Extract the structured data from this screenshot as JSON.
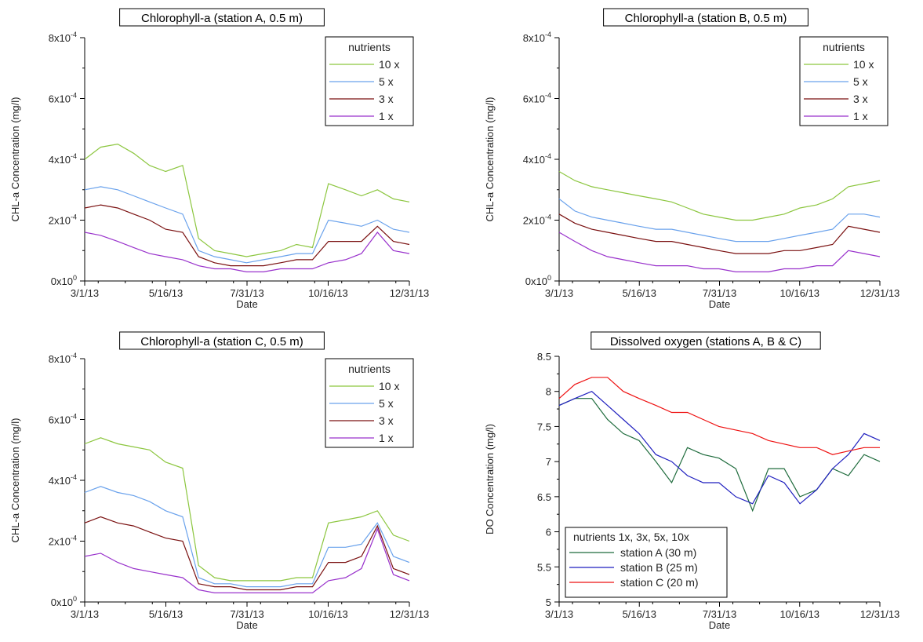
{
  "chart_data": [
    {
      "type": "line",
      "title": "Chlorophyll-a (station A, 0.5 m)",
      "xlabel": "Date",
      "ylabel": "CHL-a Concentration (mg/l)",
      "x_ticks": [
        "3/1/13",
        "5/16/13",
        "7/31/13",
        "10/16/13",
        "12/31/13"
      ],
      "y_ticks": [
        {
          "mant": "0x10",
          "exp": "0"
        },
        {
          "mant": "2x10",
          "exp": "-4"
        },
        {
          "mant": "4x10",
          "exp": "-4"
        },
        {
          "mant": "6x10",
          "exp": "-4"
        },
        {
          "mant": "8x10",
          "exp": "-4"
        }
      ],
      "xlim": [
        "2013-03-01",
        "2013-12-31"
      ],
      "ylim": [
        0,
        0.0008
      ],
      "legend_title": "nutrients",
      "legend_position": "top-right",
      "series": [
        {
          "name": "10 x",
          "color": "#8cc63f",
          "x": [
            "2013-03-01",
            "2013-03-16",
            "2013-04-01",
            "2013-04-16",
            "2013-05-01",
            "2013-05-16",
            "2013-06-01",
            "2013-06-16",
            "2013-07-01",
            "2013-07-16",
            "2013-07-31",
            "2013-08-16",
            "2013-09-01",
            "2013-09-16",
            "2013-10-01",
            "2013-10-16",
            "2013-11-01",
            "2013-11-16",
            "2013-12-01",
            "2013-12-16",
            "2013-12-31"
          ],
          "y": [
            0.0004,
            0.00044,
            0.00045,
            0.00042,
            0.00038,
            0.00036,
            0.00038,
            0.00014,
            0.0001,
            9e-05,
            8e-05,
            9e-05,
            0.0001,
            0.00012,
            0.00011,
            0.00032,
            0.0003,
            0.00028,
            0.0003,
            0.00027,
            0.00026
          ]
        },
        {
          "name": "5 x",
          "color": "#6aa2ec",
          "x": [
            "2013-03-01",
            "2013-03-16",
            "2013-04-01",
            "2013-04-16",
            "2013-05-01",
            "2013-05-16",
            "2013-06-01",
            "2013-06-16",
            "2013-07-01",
            "2013-07-16",
            "2013-07-31",
            "2013-08-16",
            "2013-09-01",
            "2013-09-16",
            "2013-10-01",
            "2013-10-16",
            "2013-11-01",
            "2013-11-16",
            "2013-12-01",
            "2013-12-16",
            "2013-12-31"
          ],
          "y": [
            0.0003,
            0.00031,
            0.0003,
            0.00028,
            0.00026,
            0.00024,
            0.00022,
            0.0001,
            8e-05,
            7e-05,
            6e-05,
            7e-05,
            8e-05,
            9e-05,
            9e-05,
            0.0002,
            0.00019,
            0.00018,
            0.0002,
            0.00017,
            0.00016
          ]
        },
        {
          "name": "3 x",
          "color": "#7a1010",
          "x": [
            "2013-03-01",
            "2013-03-16",
            "2013-04-01",
            "2013-04-16",
            "2013-05-01",
            "2013-05-16",
            "2013-06-01",
            "2013-06-16",
            "2013-07-01",
            "2013-07-16",
            "2013-07-31",
            "2013-08-16",
            "2013-09-01",
            "2013-09-16",
            "2013-10-01",
            "2013-10-16",
            "2013-11-01",
            "2013-11-16",
            "2013-12-01",
            "2013-12-16",
            "2013-12-31"
          ],
          "y": [
            0.00024,
            0.00025,
            0.00024,
            0.00022,
            0.0002,
            0.00017,
            0.00016,
            8e-05,
            6e-05,
            5e-05,
            5e-05,
            5e-05,
            6e-05,
            7e-05,
            7e-05,
            0.00013,
            0.00013,
            0.00013,
            0.00018,
            0.00013,
            0.00012
          ]
        },
        {
          "name": "1 x",
          "color": "#9932cc",
          "x": [
            "2013-03-01",
            "2013-03-16",
            "2013-04-01",
            "2013-04-16",
            "2013-05-01",
            "2013-05-16",
            "2013-06-01",
            "2013-06-16",
            "2013-07-01",
            "2013-07-16",
            "2013-07-31",
            "2013-08-16",
            "2013-09-01",
            "2013-09-16",
            "2013-10-01",
            "2013-10-16",
            "2013-11-01",
            "2013-11-16",
            "2013-12-01",
            "2013-12-16",
            "2013-12-31"
          ],
          "y": [
            0.00016,
            0.00015,
            0.00013,
            0.00011,
            9e-05,
            8e-05,
            7e-05,
            5e-05,
            4e-05,
            4e-05,
            3e-05,
            3e-05,
            4e-05,
            4e-05,
            4e-05,
            6e-05,
            7e-05,
            9e-05,
            0.00016,
            0.0001,
            9e-05
          ]
        }
      ]
    },
    {
      "type": "line",
      "title": "Chlorophyll-a (station B, 0.5 m)",
      "xlabel": "Date",
      "ylabel": "CHL-a Concentration (mg/l)",
      "x_ticks": [
        "3/1/13",
        "5/16/13",
        "7/31/13",
        "10/16/13",
        "12/31/13"
      ],
      "y_ticks": [
        {
          "mant": "0x10",
          "exp": "0"
        },
        {
          "mant": "2x10",
          "exp": "-4"
        },
        {
          "mant": "4x10",
          "exp": "-4"
        },
        {
          "mant": "6x10",
          "exp": "-4"
        },
        {
          "mant": "8x10",
          "exp": "-4"
        }
      ],
      "xlim": [
        "2013-03-01",
        "2013-12-31"
      ],
      "ylim": [
        0,
        0.0008
      ],
      "legend_title": "nutrients",
      "legend_position": "top-right",
      "series": [
        {
          "name": "10 x",
          "color": "#8cc63f",
          "x": [
            "2013-03-01",
            "2013-03-16",
            "2013-04-01",
            "2013-04-16",
            "2013-05-01",
            "2013-05-16",
            "2013-06-01",
            "2013-06-16",
            "2013-07-01",
            "2013-07-16",
            "2013-07-31",
            "2013-08-16",
            "2013-09-01",
            "2013-09-16",
            "2013-10-01",
            "2013-10-16",
            "2013-11-01",
            "2013-11-16",
            "2013-12-01",
            "2013-12-16",
            "2013-12-31"
          ],
          "y": [
            0.00036,
            0.00033,
            0.00031,
            0.0003,
            0.00029,
            0.00028,
            0.00027,
            0.00026,
            0.00024,
            0.00022,
            0.00021,
            0.0002,
            0.0002,
            0.00021,
            0.00022,
            0.00024,
            0.00025,
            0.00027,
            0.00031,
            0.00032,
            0.00033
          ]
        },
        {
          "name": "5 x",
          "color": "#6aa2ec",
          "x": [
            "2013-03-01",
            "2013-03-16",
            "2013-04-01",
            "2013-04-16",
            "2013-05-01",
            "2013-05-16",
            "2013-06-01",
            "2013-06-16",
            "2013-07-01",
            "2013-07-16",
            "2013-07-31",
            "2013-08-16",
            "2013-09-01",
            "2013-09-16",
            "2013-10-01",
            "2013-10-16",
            "2013-11-01",
            "2013-11-16",
            "2013-12-01",
            "2013-12-16",
            "2013-12-31"
          ],
          "y": [
            0.00027,
            0.00023,
            0.00021,
            0.0002,
            0.00019,
            0.00018,
            0.00017,
            0.00017,
            0.00016,
            0.00015,
            0.00014,
            0.00013,
            0.00013,
            0.00013,
            0.00014,
            0.00015,
            0.00016,
            0.00017,
            0.00022,
            0.00022,
            0.00021
          ]
        },
        {
          "name": "3 x",
          "color": "#7a1010",
          "x": [
            "2013-03-01",
            "2013-03-16",
            "2013-04-01",
            "2013-04-16",
            "2013-05-01",
            "2013-05-16",
            "2013-06-01",
            "2013-06-16",
            "2013-07-01",
            "2013-07-16",
            "2013-07-31",
            "2013-08-16",
            "2013-09-01",
            "2013-09-16",
            "2013-10-01",
            "2013-10-16",
            "2013-11-01",
            "2013-11-16",
            "2013-12-01",
            "2013-12-16",
            "2013-12-31"
          ],
          "y": [
            0.00022,
            0.00019,
            0.00017,
            0.00016,
            0.00015,
            0.00014,
            0.00013,
            0.00013,
            0.00012,
            0.00011,
            0.0001,
            9e-05,
            9e-05,
            9e-05,
            0.0001,
            0.0001,
            0.00011,
            0.00012,
            0.00018,
            0.00017,
            0.00016
          ]
        },
        {
          "name": "1 x",
          "color": "#9932cc",
          "x": [
            "2013-03-01",
            "2013-03-16",
            "2013-04-01",
            "2013-04-16",
            "2013-05-01",
            "2013-05-16",
            "2013-06-01",
            "2013-06-16",
            "2013-07-01",
            "2013-07-16",
            "2013-07-31",
            "2013-08-16",
            "2013-09-01",
            "2013-09-16",
            "2013-10-01",
            "2013-10-16",
            "2013-11-01",
            "2013-11-16",
            "2013-12-01",
            "2013-12-16",
            "2013-12-31"
          ],
          "y": [
            0.00016,
            0.00013,
            0.0001,
            8e-05,
            7e-05,
            6e-05,
            5e-05,
            5e-05,
            5e-05,
            4e-05,
            4e-05,
            3e-05,
            3e-05,
            3e-05,
            4e-05,
            4e-05,
            5e-05,
            5e-05,
            0.0001,
            9e-05,
            8e-05
          ]
        }
      ]
    },
    {
      "type": "line",
      "title": "Chlorophyll-a (station C, 0.5 m)",
      "xlabel": "Date",
      "ylabel": "CHL-a Concentration (mg/l)",
      "x_ticks": [
        "3/1/13",
        "5/16/13",
        "7/31/13",
        "10/16/13",
        "12/31/13"
      ],
      "y_ticks": [
        {
          "mant": "0x10",
          "exp": "0"
        },
        {
          "mant": "2x10",
          "exp": "-4"
        },
        {
          "mant": "4x10",
          "exp": "-4"
        },
        {
          "mant": "6x10",
          "exp": "-4"
        },
        {
          "mant": "8x10",
          "exp": "-4"
        }
      ],
      "xlim": [
        "2013-03-01",
        "2013-12-31"
      ],
      "ylim": [
        0,
        0.0008
      ],
      "legend_title": "nutrients",
      "legend_position": "top-right",
      "series": [
        {
          "name": "10 x",
          "color": "#8cc63f",
          "x": [
            "2013-03-01",
            "2013-03-16",
            "2013-04-01",
            "2013-04-16",
            "2013-05-01",
            "2013-05-16",
            "2013-06-01",
            "2013-06-16",
            "2013-07-01",
            "2013-07-16",
            "2013-07-31",
            "2013-08-16",
            "2013-09-01",
            "2013-09-16",
            "2013-10-01",
            "2013-10-16",
            "2013-11-01",
            "2013-11-16",
            "2013-12-01",
            "2013-12-16",
            "2013-12-31"
          ],
          "y": [
            0.00052,
            0.00054,
            0.00052,
            0.00051,
            0.0005,
            0.00046,
            0.00044,
            0.00012,
            8e-05,
            7e-05,
            7e-05,
            7e-05,
            7e-05,
            8e-05,
            8e-05,
            0.00026,
            0.00027,
            0.00028,
            0.0003,
            0.00022,
            0.0002
          ]
        },
        {
          "name": "5 x",
          "color": "#6aa2ec",
          "x": [
            "2013-03-01",
            "2013-03-16",
            "2013-04-01",
            "2013-04-16",
            "2013-05-01",
            "2013-05-16",
            "2013-06-01",
            "2013-06-16",
            "2013-07-01",
            "2013-07-16",
            "2013-07-31",
            "2013-08-16",
            "2013-09-01",
            "2013-09-16",
            "2013-10-01",
            "2013-10-16",
            "2013-11-01",
            "2013-11-16",
            "2013-12-01",
            "2013-12-16",
            "2013-12-31"
          ],
          "y": [
            0.00036,
            0.00038,
            0.00036,
            0.00035,
            0.00033,
            0.0003,
            0.00028,
            8e-05,
            6e-05,
            6e-05,
            5e-05,
            5e-05,
            5e-05,
            6e-05,
            6e-05,
            0.00018,
            0.00018,
            0.00019,
            0.00026,
            0.00015,
            0.00013
          ]
        },
        {
          "name": "3 x",
          "color": "#7a1010",
          "x": [
            "2013-03-01",
            "2013-03-16",
            "2013-04-01",
            "2013-04-16",
            "2013-05-01",
            "2013-05-16",
            "2013-06-01",
            "2013-06-16",
            "2013-07-01",
            "2013-07-16",
            "2013-07-31",
            "2013-08-16",
            "2013-09-01",
            "2013-09-16",
            "2013-10-01",
            "2013-10-16",
            "2013-11-01",
            "2013-11-16",
            "2013-12-01",
            "2013-12-16",
            "2013-12-31"
          ],
          "y": [
            0.00026,
            0.00028,
            0.00026,
            0.00025,
            0.00023,
            0.00021,
            0.0002,
            6e-05,
            5e-05,
            5e-05,
            4e-05,
            4e-05,
            4e-05,
            5e-05,
            5e-05,
            0.00013,
            0.00013,
            0.00015,
            0.00025,
            0.00011,
            9e-05
          ]
        },
        {
          "name": "1 x",
          "color": "#9932cc",
          "x": [
            "2013-03-01",
            "2013-03-16",
            "2013-04-01",
            "2013-04-16",
            "2013-05-01",
            "2013-05-16",
            "2013-06-01",
            "2013-06-16",
            "2013-07-01",
            "2013-07-16",
            "2013-07-31",
            "2013-08-16",
            "2013-09-01",
            "2013-09-16",
            "2013-10-01",
            "2013-10-16",
            "2013-11-01",
            "2013-11-16",
            "2013-12-01",
            "2013-12-16",
            "2013-12-31"
          ],
          "y": [
            0.00015,
            0.00016,
            0.00013,
            0.00011,
            0.0001,
            9e-05,
            8e-05,
            4e-05,
            3e-05,
            3e-05,
            3e-05,
            3e-05,
            3e-05,
            3e-05,
            3e-05,
            7e-05,
            8e-05,
            0.00011,
            0.00024,
            9e-05,
            7e-05
          ]
        }
      ]
    },
    {
      "type": "line",
      "title": "Dissolved oxygen (stations A, B & C)",
      "xlabel": "Date",
      "ylabel": "DO Concentration (mg/l)",
      "x_ticks": [
        "3/1/13",
        "5/16/13",
        "7/31/13",
        "10/16/13",
        "12/31/13"
      ],
      "y_ticks": [
        "5",
        "5.5",
        "6",
        "6.5",
        "7",
        "7.5",
        "8",
        "8.5"
      ],
      "xlim": [
        "2013-03-01",
        "2013-12-31"
      ],
      "ylim": [
        5,
        8.5
      ],
      "legend_title": "nutrients 1x, 3x, 5x, 10x",
      "legend_position": "bottom-left",
      "series": [
        {
          "name": "station A (30 m)",
          "color": "#1e6b3c",
          "x": [
            "2013-03-01",
            "2013-03-16",
            "2013-04-01",
            "2013-04-16",
            "2013-05-01",
            "2013-05-16",
            "2013-06-01",
            "2013-06-16",
            "2013-07-01",
            "2013-07-16",
            "2013-07-31",
            "2013-08-16",
            "2013-09-01",
            "2013-09-16",
            "2013-10-01",
            "2013-10-16",
            "2013-11-01",
            "2013-11-16",
            "2013-12-01",
            "2013-12-16",
            "2013-12-31"
          ],
          "y": [
            7.8,
            7.9,
            7.9,
            7.6,
            7.4,
            7.3,
            7.0,
            6.7,
            7.2,
            7.1,
            7.05,
            6.9,
            6.3,
            6.9,
            6.9,
            6.5,
            6.6,
            6.9,
            6.8,
            7.1,
            7.0
          ]
        },
        {
          "name": "station B (25 m)",
          "color": "#1f1fbf",
          "x": [
            "2013-03-01",
            "2013-03-16",
            "2013-04-01",
            "2013-04-16",
            "2013-05-01",
            "2013-05-16",
            "2013-06-01",
            "2013-06-16",
            "2013-07-01",
            "2013-07-16",
            "2013-07-31",
            "2013-08-16",
            "2013-09-01",
            "2013-09-16",
            "2013-10-01",
            "2013-10-16",
            "2013-11-01",
            "2013-11-16",
            "2013-12-01",
            "2013-12-16",
            "2013-12-31"
          ],
          "y": [
            7.8,
            7.9,
            8.0,
            7.8,
            7.6,
            7.4,
            7.1,
            7.0,
            6.8,
            6.7,
            6.7,
            6.5,
            6.4,
            6.8,
            6.7,
            6.4,
            6.6,
            6.9,
            7.1,
            7.4,
            7.3
          ]
        },
        {
          "name": "station C (20 m)",
          "color": "#ee1111",
          "x": [
            "2013-03-01",
            "2013-03-16",
            "2013-04-01",
            "2013-04-16",
            "2013-05-01",
            "2013-05-16",
            "2013-06-01",
            "2013-06-16",
            "2013-07-01",
            "2013-07-16",
            "2013-07-31",
            "2013-08-16",
            "2013-09-01",
            "2013-09-16",
            "2013-10-01",
            "2013-10-16",
            "2013-11-01",
            "2013-11-16",
            "2013-12-01",
            "2013-12-16",
            "2013-12-31"
          ],
          "y": [
            7.9,
            8.1,
            8.2,
            8.2,
            8.0,
            7.9,
            7.8,
            7.7,
            7.7,
            7.6,
            7.5,
            7.45,
            7.4,
            7.3,
            7.25,
            7.2,
            7.2,
            7.1,
            7.15,
            7.2,
            7.2
          ]
        }
      ]
    }
  ]
}
